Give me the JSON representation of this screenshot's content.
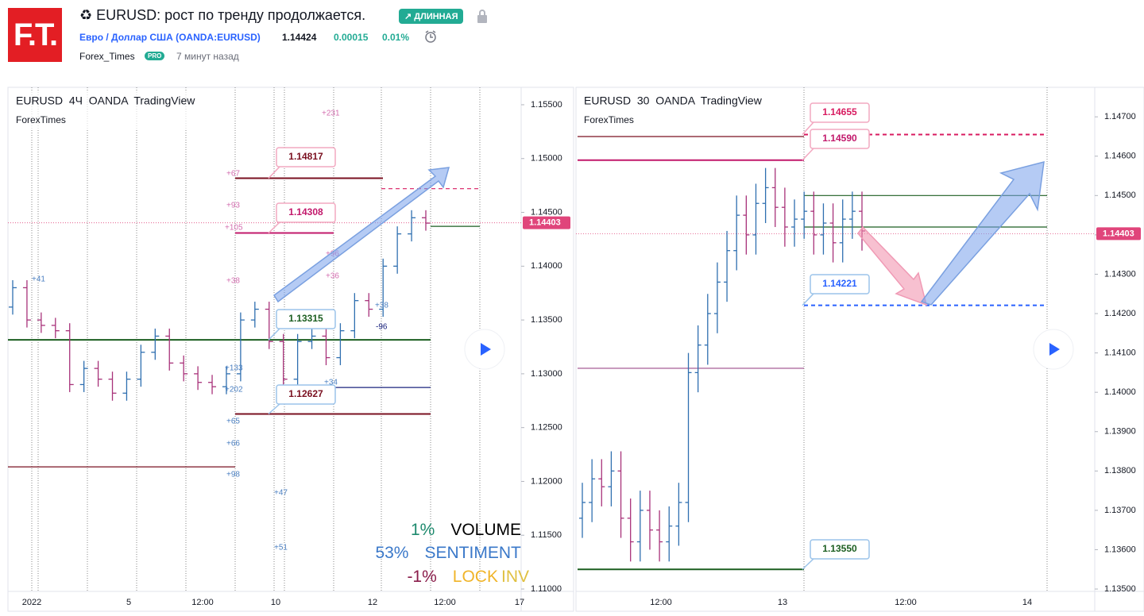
{
  "header": {
    "logo": "F.T.",
    "title": "♻ EURUSD: рост по тренду продолжается.",
    "badge": "↗ ДЛИННАЯ",
    "symbol": "Евро / Доллар США (OANDA:EURUSD)",
    "price": "1.14424",
    "change": "0.00015",
    "change_pct": "0.01%",
    "author": "Forex_Times",
    "author_badge": "PRO",
    "time": "7 минут назад"
  },
  "chart_data": [
    {
      "type": "ohlc",
      "title": "EURUSD  4Ч  OANDA  TradingView",
      "subtitle": "ForexTimes",
      "up_color": "#2f6fb0",
      "down_color": "#a8327a",
      "ylim": [
        1.10978,
        1.15662
      ],
      "yticks": [
        {
          "value": 1.155,
          "label": "1.15500"
        },
        {
          "value": 1.15,
          "label": "1.15000"
        },
        {
          "value": 1.145,
          "label": "1.14500"
        },
        {
          "value": 1.14,
          "label": "1.14000"
        },
        {
          "value": 1.135,
          "label": "1.13500"
        },
        {
          "value": 1.13,
          "label": "1.13000"
        },
        {
          "value": 1.125,
          "label": "1.12500"
        },
        {
          "value": 1.12,
          "label": "1.12000"
        },
        {
          "value": 1.115,
          "label": "1.11500"
        },
        {
          "value": 1.11,
          "label": "1.11000"
        }
      ],
      "time_labels": [
        "2022",
        "5",
        "12:00",
        "10",
        "12",
        "12:00",
        "17"
      ],
      "open": [
        1.1362,
        1.138,
        1.135,
        1.1345,
        1.134,
        1.129,
        1.1305,
        1.1295,
        1.1282,
        1.1295,
        1.132,
        1.1335,
        1.131,
        1.13,
        1.1292,
        1.1288,
        1.13,
        1.135,
        1.136,
        1.133,
        1.1295,
        1.133,
        1.1335,
        1.1315,
        1.134,
        1.1368,
        1.136,
        1.14,
        1.143,
        1.1445
      ],
      "high": [
        1.1387,
        1.1387,
        1.1357,
        1.1352,
        1.1347,
        1.1312,
        1.1312,
        1.1302,
        1.1302,
        1.1327,
        1.1342,
        1.1342,
        1.1317,
        1.1307,
        1.1299,
        1.1307,
        1.1357,
        1.1367,
        1.1367,
        1.1337,
        1.1337,
        1.1342,
        1.1342,
        1.1347,
        1.1375,
        1.1375,
        1.1407,
        1.1437,
        1.1452,
        1.1452
      ],
      "low": [
        1.1355,
        1.1343,
        1.1338,
        1.1333,
        1.1283,
        1.1283,
        1.1288,
        1.1275,
        1.1275,
        1.1288,
        1.1313,
        1.1303,
        1.1293,
        1.1285,
        1.1281,
        1.1281,
        1.1293,
        1.1343,
        1.1323,
        1.1288,
        1.1288,
        1.1323,
        1.1308,
        1.1308,
        1.1333,
        1.1353,
        1.1353,
        1.1393,
        1.1423,
        1.1433
      ],
      "close": [
        1.138,
        1.135,
        1.1345,
        1.134,
        1.129,
        1.1305,
        1.1295,
        1.1282,
        1.1295,
        1.132,
        1.1335,
        1.131,
        1.13,
        1.1292,
        1.1288,
        1.13,
        1.135,
        1.136,
        1.133,
        1.1295,
        1.133,
        1.1335,
        1.1315,
        1.134,
        1.1368,
        1.136,
        1.14,
        1.143,
        1.1445,
        1.144
      ],
      "last_price": 1.14403,
      "last_price_color": "#e0457b",
      "levels": [
        {
          "value": 1.14817,
          "label": "1.14817",
          "color": "#7a1020"
        },
        {
          "value": 1.14308,
          "label": "1.14308",
          "color": "#c2186b"
        },
        {
          "value": 1.13315,
          "label": "1.13315",
          "color": "#1b5e20"
        },
        {
          "value": 1.12627,
          "label": "1.12627",
          "color": "#7a1020"
        },
        {
          "value": 1.12873,
          "color": "#1a237e"
        },
        {
          "value": 1.12135,
          "color": "#7a1020"
        },
        {
          "value": 1.1472,
          "color": "#d81b60",
          "dash": true
        },
        {
          "value": 1.1437,
          "color": "#1b5e20"
        }
      ],
      "annotations": [
        {
          "text": "+41",
          "color": "#4a7fc1"
        },
        {
          "text": "+231",
          "color": "#d46fb0"
        },
        {
          "text": "+67",
          "color": "#d46fb0"
        },
        {
          "text": "+93",
          "color": "#d46fb0"
        },
        {
          "text": "+105",
          "color": "#d46fb0"
        },
        {
          "text": "+38",
          "color": "#d46fb0"
        },
        {
          "text": "+133",
          "color": "#4a7fc1"
        },
        {
          "text": "+202",
          "color": "#4a7fc1"
        },
        {
          "text": "+65",
          "color": "#4a7fc1"
        },
        {
          "text": "+66",
          "color": "#4a7fc1"
        },
        {
          "text": "+98",
          "color": "#4a7fc1"
        },
        {
          "text": "+47",
          "color": "#4a7fc1"
        },
        {
          "text": "+51",
          "color": "#4a7fc1"
        },
        {
          "text": "+96",
          "color": "#d46fb0"
        },
        {
          "text": "+36",
          "color": "#d46fb0"
        },
        {
          "text": "+38",
          "color": "#4a7fc1"
        },
        {
          "text": "-96",
          "color": "#1a237e"
        },
        {
          "text": "+34",
          "color": "#4a7fc1"
        }
      ],
      "indicators": [
        {
          "parts": [
            "1%",
            "VOLUME"
          ],
          "colors": [
            "#1e8a6e",
            "#000000"
          ]
        },
        {
          "parts": [
            "53%",
            "SENTIMENT"
          ],
          "colors": [
            "#3a78c9",
            "#3a78c9"
          ]
        },
        {
          "parts": [
            "-1%",
            "LOCK",
            "INV"
          ],
          "colors": [
            "#8a1c4a",
            "#f0b429",
            "#e0c040"
          ]
        }
      ]
    },
    {
      "type": "ohlc",
      "title": "EURUSD  30  OANDA  TradingView",
      "subtitle": "ForexTimes",
      "up_color": "#2f6fb0",
      "down_color": "#a8327a",
      "ylim": [
        1.13494,
        1.14775
      ],
      "yticks": [
        {
          "value": 1.147,
          "label": "1.14700"
        },
        {
          "value": 1.146,
          "label": "1.14600"
        },
        {
          "value": 1.145,
          "label": "1.14500"
        },
        {
          "value": 1.144,
          "label": "1.14400"
        },
        {
          "value": 1.143,
          "label": "1.14300"
        },
        {
          "value": 1.142,
          "label": "1.14200"
        },
        {
          "value": 1.141,
          "label": "1.14100"
        },
        {
          "value": 1.14,
          "label": "1.14000"
        },
        {
          "value": 1.139,
          "label": "1.13900"
        },
        {
          "value": 1.138,
          "label": "1.13800"
        },
        {
          "value": 1.137,
          "label": "1.13700"
        },
        {
          "value": 1.136,
          "label": "1.13600"
        },
        {
          "value": 1.135,
          "label": "1.13500"
        }
      ],
      "time_labels": [
        "12:00",
        "13",
        "12:00",
        "14"
      ],
      "open": [
        1.1368,
        1.1372,
        1.1378,
        1.1376,
        1.138,
        1.1368,
        1.1362,
        1.137,
        1.1365,
        1.1362,
        1.1366,
        1.1372,
        1.1405,
        1.1412,
        1.142,
        1.1428,
        1.1436,
        1.1445,
        1.144,
        1.1448,
        1.1452,
        1.1447,
        1.1442,
        1.1444,
        1.1446,
        1.144,
        1.1443,
        1.1438,
        1.1444,
        1.1446
      ],
      "high": [
        1.1377,
        1.1383,
        1.1383,
        1.1385,
        1.1385,
        1.1373,
        1.1375,
        1.1375,
        1.137,
        1.1371,
        1.1377,
        1.141,
        1.1417,
        1.1425,
        1.1433,
        1.1441,
        1.145,
        1.145,
        1.1453,
        1.1457,
        1.1457,
        1.1452,
        1.1449,
        1.1451,
        1.1451,
        1.1448,
        1.1448,
        1.1449,
        1.1451,
        1.1451
      ],
      "low": [
        1.1363,
        1.1367,
        1.1371,
        1.1371,
        1.1363,
        1.1357,
        1.1357,
        1.136,
        1.1357,
        1.1357,
        1.1361,
        1.1367,
        1.14,
        1.1407,
        1.1415,
        1.1423,
        1.1431,
        1.1435,
        1.1435,
        1.1443,
        1.1442,
        1.1437,
        1.1437,
        1.1439,
        1.1435,
        1.1435,
        1.1433,
        1.1433,
        1.1439,
        1.1436
      ],
      "close": [
        1.1372,
        1.1378,
        1.1376,
        1.138,
        1.1368,
        1.1362,
        1.137,
        1.1365,
        1.1362,
        1.1366,
        1.1372,
        1.1405,
        1.1412,
        1.142,
        1.1428,
        1.1436,
        1.1445,
        1.144,
        1.1448,
        1.1452,
        1.1447,
        1.1442,
        1.1444,
        1.1446,
        1.144,
        1.1443,
        1.1438,
        1.1444,
        1.1446,
        1.1441
      ],
      "last_price": 1.14403,
      "last_price_color": "#e0457b",
      "levels": [
        {
          "value": 1.14655,
          "label": "1.14655",
          "color": "#d81b60",
          "dash": true
        },
        {
          "value": 1.1459,
          "label": "1.14590",
          "color": "#c2186b"
        },
        {
          "value": 1.14221,
          "label": "1.14221",
          "color": "#2962ff",
          "dash": true
        },
        {
          "value": 1.1355,
          "label": "1.13550",
          "color": "#1b5e20"
        },
        {
          "value": 1.1465,
          "color": "#7a1020"
        },
        {
          "value": 1.14061,
          "color": "#9c4a8a"
        },
        {
          "value": 1.145,
          "color": "#1b5e20"
        },
        {
          "value": 1.1442,
          "color": "#1b5e20"
        }
      ]
    }
  ]
}
